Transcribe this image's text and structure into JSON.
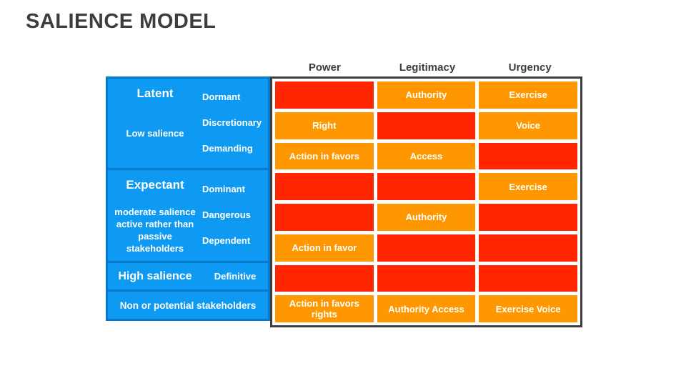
{
  "title": "SALIENCE MODEL",
  "columns": {
    "0": "Power",
    "1": "Legitimacy",
    "2": "Urgency"
  },
  "colors": {
    "blue_fill": "#0e9af2",
    "blue_border": "#0878c8",
    "cell_orange": "#ff9800",
    "cell_red": "#ff2600",
    "grid_border": "#3e3e3e",
    "title_text": "#3d3d3d"
  },
  "row_groups": [
    {
      "name": "Latent",
      "subtitle": "Low salience",
      "sub_items": [
        "Dormant",
        "Discretionary",
        "Demanding"
      ]
    },
    {
      "name": "Expectant",
      "subtitle": "moderate salience active rather than passive stakeholders",
      "sub_items": [
        "Dominant",
        "Dangerous",
        "Dependent"
      ]
    },
    {
      "name": "High salience",
      "sub_items": [
        "Definitive"
      ]
    },
    {
      "name": "Non or potential stakeholders"
    }
  ],
  "grid": {
    "rows": [
      {
        "cells": [
          {
            "text": "",
            "color": "red"
          },
          {
            "text": "Authority",
            "color": "orange"
          },
          {
            "text": "Exercise",
            "color": "orange"
          }
        ]
      },
      {
        "cells": [
          {
            "text": "Right",
            "color": "orange"
          },
          {
            "text": "",
            "color": "red"
          },
          {
            "text": "Voice",
            "color": "orange"
          }
        ]
      },
      {
        "cells": [
          {
            "text": "Action in favors",
            "color": "orange"
          },
          {
            "text": "Access",
            "color": "orange"
          },
          {
            "text": "",
            "color": "red"
          }
        ]
      },
      {
        "cells": [
          {
            "text": "",
            "color": "red"
          },
          {
            "text": "",
            "color": "red"
          },
          {
            "text": "Exercise",
            "color": "orange"
          }
        ]
      },
      {
        "cells": [
          {
            "text": "",
            "color": "red"
          },
          {
            "text": "Authority",
            "color": "orange"
          },
          {
            "text": "",
            "color": "red"
          }
        ]
      },
      {
        "cells": [
          {
            "text": "Action in favor",
            "color": "orange"
          },
          {
            "text": "",
            "color": "red"
          },
          {
            "text": "",
            "color": "red"
          }
        ]
      },
      {
        "cells": [
          {
            "text": "",
            "color": "red"
          },
          {
            "text": "",
            "color": "red"
          },
          {
            "text": "",
            "color": "red"
          }
        ]
      },
      {
        "cells": [
          {
            "text": "Action in favors rights",
            "color": "orange"
          },
          {
            "text": "Authority Access",
            "color": "orange"
          },
          {
            "text": "Exercise Voice",
            "color": "orange"
          }
        ]
      }
    ]
  }
}
